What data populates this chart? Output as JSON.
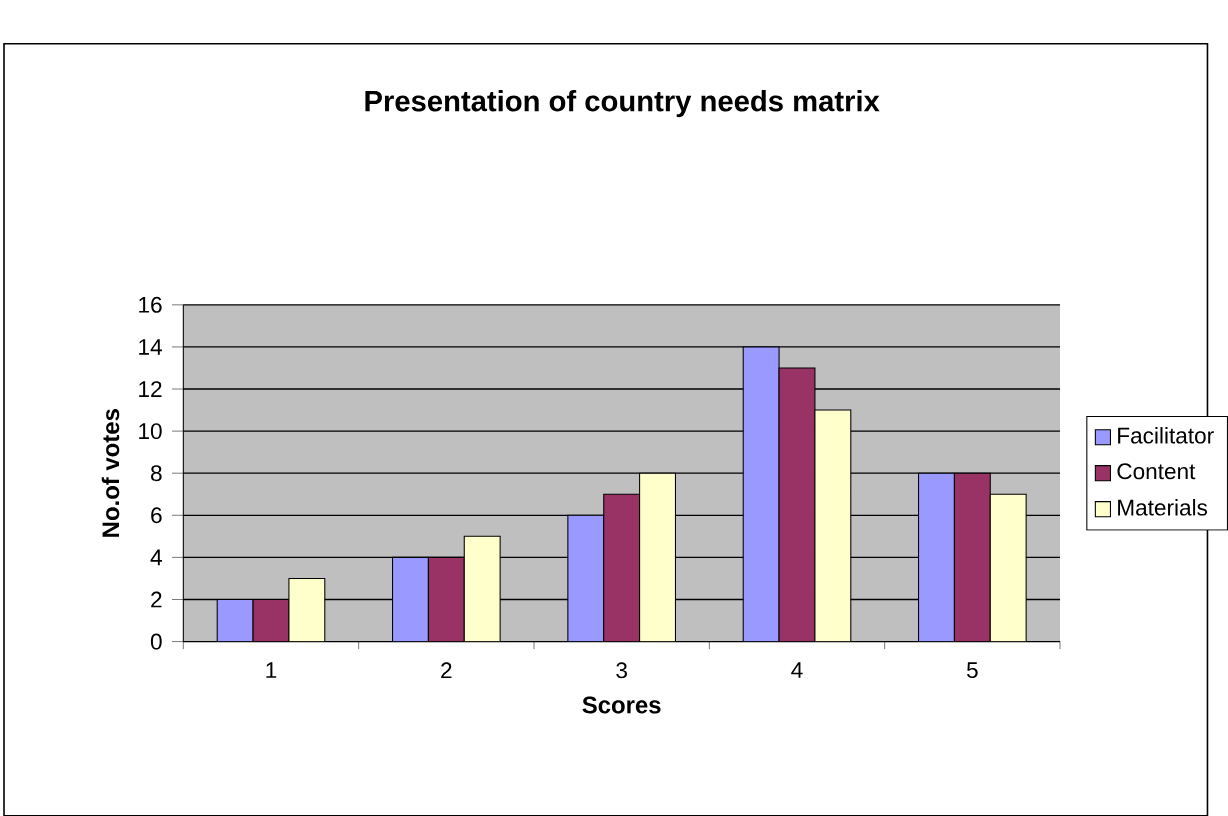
{
  "chart_data": {
    "type": "bar",
    "title": "Presentation of country needs matrix",
    "xlabel": "Scores",
    "ylabel": "No.of votes",
    "categories": [
      "1",
      "2",
      "3",
      "4",
      "5"
    ],
    "series": [
      {
        "name": "Facilitator",
        "color": "#9999ff",
        "values": [
          2,
          4,
          6,
          14,
          8
        ]
      },
      {
        "name": "Content",
        "color": "#993366",
        "values": [
          2,
          4,
          7,
          13,
          8
        ]
      },
      {
        "name": "Materials",
        "color": "#ffffcc",
        "values": [
          3,
          5,
          8,
          11,
          7
        ]
      }
    ],
    "ylim": [
      0,
      16
    ],
    "yticks": [
      0,
      2,
      4,
      6,
      8,
      10,
      12,
      14,
      16
    ],
    "grid": "y",
    "legend": "right"
  }
}
